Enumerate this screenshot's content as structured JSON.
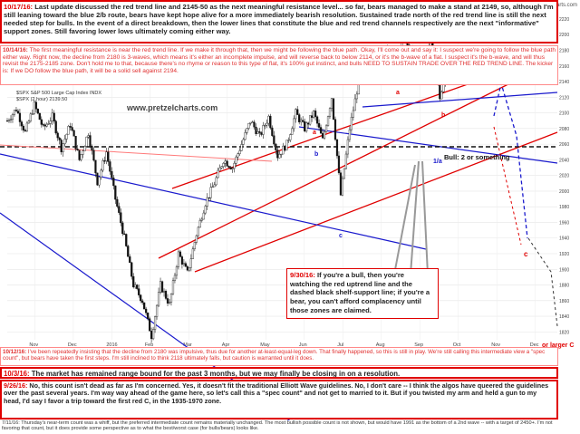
{
  "chart_data": {
    "type": "candlestick",
    "ticker": "$SPX",
    "header_line1": "$SPX  S&P 500 Large Cap Index  INDX",
    "header_line2": "$SPX (2 hour) 2139.50",
    "watermark": "www.pretzelcharts.com",
    "credit": "© StockCharts.com",
    "ylim": [
      1810,
      2235
    ],
    "y_ticks": [
      1820,
      1840,
      1860,
      1880,
      1900,
      1920,
      1940,
      1960,
      1980,
      2000,
      2020,
      2040,
      2060,
      2080,
      2100,
      2120,
      2140,
      2160,
      2180,
      2200,
      2220
    ],
    "x_tick_labels": [
      {
        "label": "Nov",
        "pos": 0.05
      },
      {
        "label": "Dec",
        "pos": 0.12
      },
      {
        "label": "2016",
        "pos": 0.19
      },
      {
        "label": "Feb",
        "pos": 0.26
      },
      {
        "label": "Mar",
        "pos": 0.33
      },
      {
        "label": "Apr",
        "pos": 0.4
      },
      {
        "label": "May",
        "pos": 0.47
      },
      {
        "label": "Jun",
        "pos": 0.54
      },
      {
        "label": "Jul",
        "pos": 0.61
      },
      {
        "label": "Aug",
        "pos": 0.68
      },
      {
        "label": "Sep",
        "pos": 0.75
      },
      {
        "label": "Oct",
        "pos": 0.82
      },
      {
        "label": "Nov",
        "pos": 0.89
      },
      {
        "label": "Dec",
        "pos": 0.96
      }
    ],
    "price_path": [
      2090,
      2105,
      2075,
      2110,
      2080,
      2095,
      2055,
      2085,
      2040,
      2075,
      2012,
      2050,
      1990,
      1940,
      1880,
      1860,
      1815,
      1880,
      1855,
      1920,
      1895,
      1945,
      1985,
      2010,
      2040,
      2030,
      2060,
      2090,
      2070,
      2095,
      2045,
      2060,
      2100,
      2080,
      2100,
      2065,
      2120,
      1995,
      2080,
      2140,
      2165,
      2175,
      2185,
      2170,
      2190,
      2180,
      2165,
      2190,
      2120,
      2155,
      2140,
      2160,
      2140,
      2165,
      2139
    ],
    "annotations": [
      "a",
      "b",
      "c",
      "a",
      "b",
      "1/a",
      "2/b",
      "c",
      "or larger C"
    ],
    "bull_label": "Bull: 2 or something"
  },
  "notes": {
    "n1_date": "10/17/16:",
    "n1_text": " Last update discussed the red trend line and 2145-50 as the next meaningful resistance level... so far, bears managed to make a stand at 2149, so, although I'm still leaning toward the blue 2/b route, bears have kept hope alive for a more immediately bearish resolution.  Sustained trade north of the red trend line is still the next needed step for bulls.  In the event of a direct breakdown, then the lower lines that constitute the blue and red trend channels respectively are the next \"informative\" support zones.  Still favoring lower lows ultimately coming either way.",
    "n2_date": "10/14/16:",
    "n2_text": " The first meaningful resistance is near the red trend line.  If we make it through that, then we might be following the blue path.  Okay, I'll come out and say it:  I suspect we're going to follow the blue path either way.  Right now, the decline from 2180 is 3-waves, which means it's either an incomplete impulse, and will reverse back to below 2114, or it's the b-wave of a flat.  I suspect it's the b-wave, and will thus revisit the 2175-2185 zone.  Don't hold me to that, because there's no rhyme or reason to this type of flat, it's 100% gut instinct, and bulls NEED TO SUSTAIN TRADE OVER THE RED TREND LINE.  The kicker is:  If we DO follow the blue path, it will be a solid sell against 2194.",
    "n3_date": "10/12/16:",
    "n3_text": " I've been repeatedly insisting that the decline from 2180 was impulsive, thus due for another at-least-equal-leg down.  That finally happened, so this is still in play.  We're still calling this intermediate view a \"spec count\", but bears have taken the first steps.  I'm still inclined to think 2118 ultimately falls, but caution is warranted until it does.",
    "n4_date": "10/3/16:",
    "n4_text": " The market has remained range bound for the past 3 months, but we may finally be closing in on a resolution.",
    "n5_date": "9/26/16:",
    "n5_text": " No, this count isn't dead as far as I'm concerned.  Yes, it doesn't fit the traditional Elliott Wave guidelines.  No, I don't care -- I think the algos have queered the guidelines over the past several years.  I'm way way ahead of the game here, so let's call this a \"spec count\" and not get to married to it.  But if you twisted my arm and held a gun to my head, I'd say I favor a trip toward the first red C, in the 1935-1970 zone.",
    "n6_date": "7/11/16:",
    "n6_text": " Thursday's near-term count was a whiff, but the preferred intermediate count remains materially unchanged.  The most bullish possible count is not shown, but would have 1991 as the bottom of a 2nd wave -- with a target of 2450+.  I'm not favoring that count, but it does provide some perspective as to what the best/worst case (for bulls/bears) looks like.",
    "n930_date": "9/30/16:",
    "n930_text": " If you're a bull, then you're watching the red uptrend line and the dashed black shelf-support line; if you're a bear, you can't afford complacency until those zones are claimed."
  }
}
